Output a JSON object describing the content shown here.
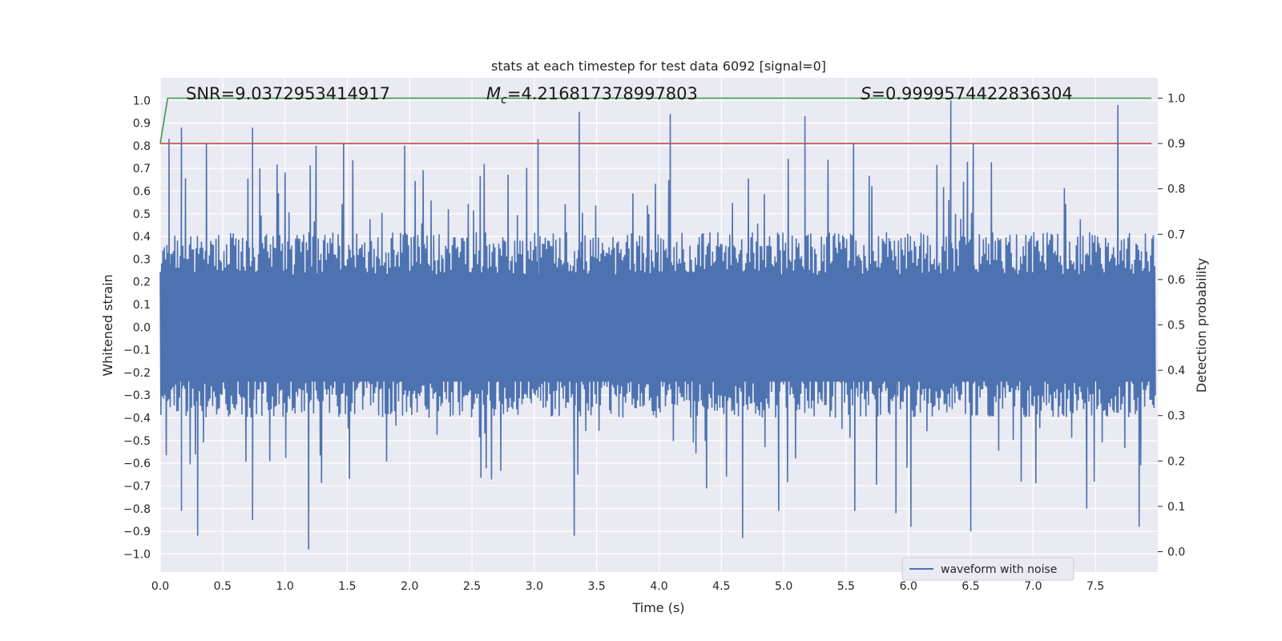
{
  "chart_data": {
    "type": "line",
    "title": "stats at each timestep for test data 6092 [signal=0]",
    "xlabel": "Time (s)",
    "ylabel": "Whitened strain",
    "y2label": "Detection probability",
    "xlim": [
      0.0,
      8.0
    ],
    "ylim": [
      -1.08,
      1.1
    ],
    "y2lim": [
      -0.045,
      1.045
    ],
    "x_ticks": [
      0.0,
      0.5,
      1.0,
      1.5,
      2.0,
      2.5,
      3.0,
      3.5,
      4.0,
      4.5,
      5.0,
      5.5,
      6.0,
      6.5,
      7.0,
      7.5
    ],
    "x_tick_labels": [
      "0.0",
      "0.5",
      "1.0",
      "1.5",
      "2.0",
      "2.5",
      "3.0",
      "3.5",
      "4.0",
      "4.5",
      "5.0",
      "5.5",
      "6.0",
      "6.5",
      "7.0",
      "7.5"
    ],
    "y_ticks": [
      1.0,
      0.9,
      0.8,
      0.7,
      0.6,
      0.5,
      0.4,
      0.3,
      0.2,
      0.1,
      0.0,
      -0.1,
      -0.2,
      -0.3,
      -0.4,
      -0.5,
      -0.6,
      -0.7,
      -0.8,
      -0.9,
      -1.0
    ],
    "y_tick_labels": [
      "1.0",
      "0.9",
      "0.8",
      "0.7",
      "0.6",
      "0.5",
      "0.4",
      "0.3",
      "0.2",
      "0.1",
      "0.0",
      "−0.1",
      "−0.2",
      "−0.3",
      "−0.4",
      "−0.5",
      "−0.6",
      "−0.7",
      "−0.8",
      "−0.9",
      "−1.0"
    ],
    "y2_ticks": [
      1.0,
      0.9,
      0.8,
      0.7,
      0.6,
      0.5,
      0.4,
      0.3,
      0.2,
      0.1,
      0.0
    ],
    "y2_tick_labels": [
      "1.0",
      "0.9",
      "0.8",
      "0.7",
      "0.6",
      "0.5",
      "0.4",
      "0.3",
      "0.2",
      "0.1",
      "0.0"
    ],
    "grid": true,
    "legend": {
      "position": "lower-right",
      "entries": [
        "waveform with noise"
      ]
    },
    "annotations": {
      "snr_prefix": "SNR=",
      "snr_value": "9.0372953414917",
      "mc_symbol": "M",
      "mc_sub": "c",
      "mc_equals": "=",
      "mc_value": "4.216817378997803",
      "s_symbol": "S",
      "s_equals": "=",
      "s_value": "0.9999574422836304"
    },
    "series": [
      {
        "name": "waveform with noise",
        "axis": "left",
        "color": "#4c72b0",
        "x_range": [
          0.0,
          7.98
        ],
        "typical_envelope": [
          -0.4,
          0.42
        ],
        "peaks": [
          [
            0.07,
            0.83
          ],
          [
            0.17,
            0.88
          ],
          [
            0.37,
            0.81
          ],
          [
            0.74,
            0.88
          ],
          [
            1.25,
            0.8
          ],
          [
            1.47,
            0.81
          ],
          [
            1.96,
            0.8
          ],
          [
            3.03,
            0.83
          ],
          [
            3.36,
            0.95
          ],
          [
            4.09,
            0.94
          ],
          [
            5.17,
            0.93
          ],
          [
            5.56,
            0.81
          ],
          [
            6.34,
            1.0
          ],
          [
            6.52,
            0.81
          ],
          [
            7.68,
            0.98
          ]
        ],
        "troughs": [
          [
            0.17,
            -0.81
          ],
          [
            0.3,
            -0.92
          ],
          [
            0.74,
            -0.85
          ],
          [
            1.19,
            -0.98
          ],
          [
            3.32,
            -0.92
          ],
          [
            4.67,
            -0.93
          ],
          [
            4.96,
            -0.81
          ],
          [
            5.57,
            -0.81
          ],
          [
            5.9,
            -0.82
          ],
          [
            6.02,
            -0.88
          ],
          [
            6.5,
            -0.9
          ],
          [
            7.43,
            -0.8
          ],
          [
            7.85,
            -0.88
          ]
        ]
      },
      {
        "name": "",
        "axis": "right",
        "color": "#3a9a4c",
        "x": [
          0.0,
          0.06,
          0.07,
          7.95
        ],
        "values": [
          0.9,
          1.0,
          1.0,
          1.0
        ]
      },
      {
        "name": "",
        "axis": "right",
        "color": "#c44e52",
        "x": [
          0.0,
          7.95
        ],
        "values": [
          0.9,
          0.9
        ]
      }
    ]
  }
}
